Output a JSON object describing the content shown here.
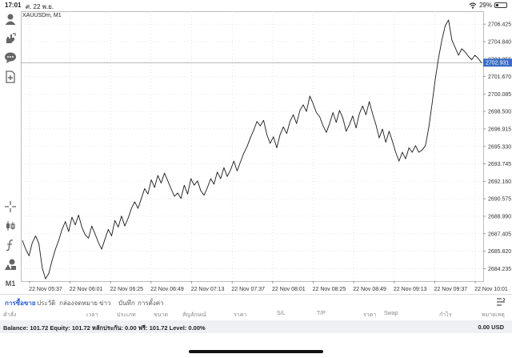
{
  "status": {
    "time": "17:01",
    "date": "ศ. 22 พ.ย.",
    "battery": "29%",
    "battery_level": 0.29
  },
  "toolbar": {
    "icons": [
      "user-icon",
      "hand-icon",
      "chat-icon",
      "new-document-icon",
      "crosshair-icon",
      "candlestick-icon",
      "function-icon",
      "objects-icon"
    ],
    "timeframe": "M1"
  },
  "chart": {
    "symbol": "XAUUSDm, M1",
    "price_label": "2702.931",
    "colors": {
      "line": "#1a1a1a",
      "price_label_bg": "#3b6ec2",
      "grid": "#d4d4d4",
      "axis_text": "#333333"
    }
  },
  "chart_data": {
    "type": "line",
    "x_tick_labels": [
      "22 Nov 05:37",
      "22 Nov 06:01",
      "22 Nov 06:25",
      "22 Nov 06:49",
      "22 Nov 07:13",
      "22 Nov 07:37",
      "22 Nov 08:01",
      "22 Nov 08:25",
      "22 Nov 08:49",
      "22 Nov 09:13",
      "22 Nov 09:37",
      "22 Nov 10:01"
    ],
    "y_tick_labels": [
      "2706.425",
      "2704.840",
      "2703.255",
      "2701.670",
      "2700.085",
      "2698.500",
      "2696.915",
      "2695.330",
      "2693.745",
      "2692.160",
      "2690.575",
      "2688.990",
      "2687.405",
      "2685.820",
      "2684.235"
    ],
    "ylim": [
      2683.1,
      2707.6
    ],
    "grid": true,
    "current_price": 2702.931,
    "values": [
      2686.8,
      2686.0,
      2685.4,
      2686.6,
      2687.2,
      2686.5,
      2684.3,
      2683.3,
      2683.8,
      2685.0,
      2686.0,
      2686.8,
      2687.8,
      2688.5,
      2687.6,
      2688.9,
      2688.2,
      2689.1,
      2688.0,
      2687.3,
      2687.0,
      2688.1,
      2687.4,
      2686.6,
      2686.0,
      2686.9,
      2687.8,
      2687.2,
      2688.6,
      2688.0,
      2689.0,
      2688.1,
      2688.8,
      2689.7,
      2690.3,
      2689.7,
      2690.6,
      2691.5,
      2691.0,
      2692.3,
      2691.6,
      2692.7,
      2692.0,
      2692.9,
      2692.2,
      2691.5,
      2690.8,
      2691.1,
      2690.6,
      2691.8,
      2691.0,
      2692.4,
      2691.8,
      2692.2,
      2691.3,
      2690.9,
      2691.6,
      2692.4,
      2691.9,
      2693.0,
      2692.4,
      2693.4,
      2692.6,
      2693.2,
      2694.0,
      2693.1,
      2693.9,
      2694.7,
      2695.3,
      2696.1,
      2696.8,
      2697.6,
      2697.2,
      2697.7,
      2696.4,
      2695.6,
      2696.2,
      2695.2,
      2696.4,
      2697.1,
      2696.5,
      2697.6,
      2698.2,
      2697.4,
      2698.6,
      2699.1,
      2698.5,
      2699.9,
      2699.2,
      2698.4,
      2698.0,
      2697.2,
      2696.6,
      2697.4,
      2698.4,
      2697.5,
      2698.6,
      2697.9,
      2696.7,
      2697.3,
      2698.1,
      2697.0,
      2698.3,
      2699.0,
      2698.2,
      2699.4,
      2698.3,
      2697.3,
      2696.1,
      2696.9,
      2695.7,
      2696.7,
      2695.8,
      2694.8,
      2694.0,
      2694.8,
      2694.2,
      2695.2,
      2694.8,
      2695.4,
      2694.8,
      2695.0,
      2695.4,
      2697.0,
      2699.2,
      2701.5,
      2703.4,
      2705.0,
      2706.3,
      2706.8,
      2705.0,
      2704.3,
      2703.6,
      2704.2,
      2703.9,
      2703.5,
      2703.2,
      2703.6,
      2703.3,
      2702.9
    ]
  },
  "tabs": [
    {
      "label": "การซื้อขาย",
      "active": true
    },
    {
      "label": "ประวัติ",
      "active": false
    },
    {
      "label": "กล่องจดหมาย",
      "active": false
    },
    {
      "label": "ข่าว",
      "active": false
    },
    {
      "label": "บันทึก",
      "active": false
    },
    {
      "label": "การตั้งค่า",
      "active": false
    }
  ],
  "columns": [
    "คำสั่ง",
    "เวลา",
    "ประเภท",
    "ขนาด",
    "สัญลักษณ์",
    "ราคา",
    "S/L",
    "T/P",
    "ราคา",
    "Swap",
    "กำไร",
    "หมายเหตุ"
  ],
  "account": {
    "summary": "Balance: 101.72 Equity: 101.72 หลักประกัน: 0.00 ฟรี: 101.72 Level: 0.00%",
    "profit": "0.00  USD"
  }
}
